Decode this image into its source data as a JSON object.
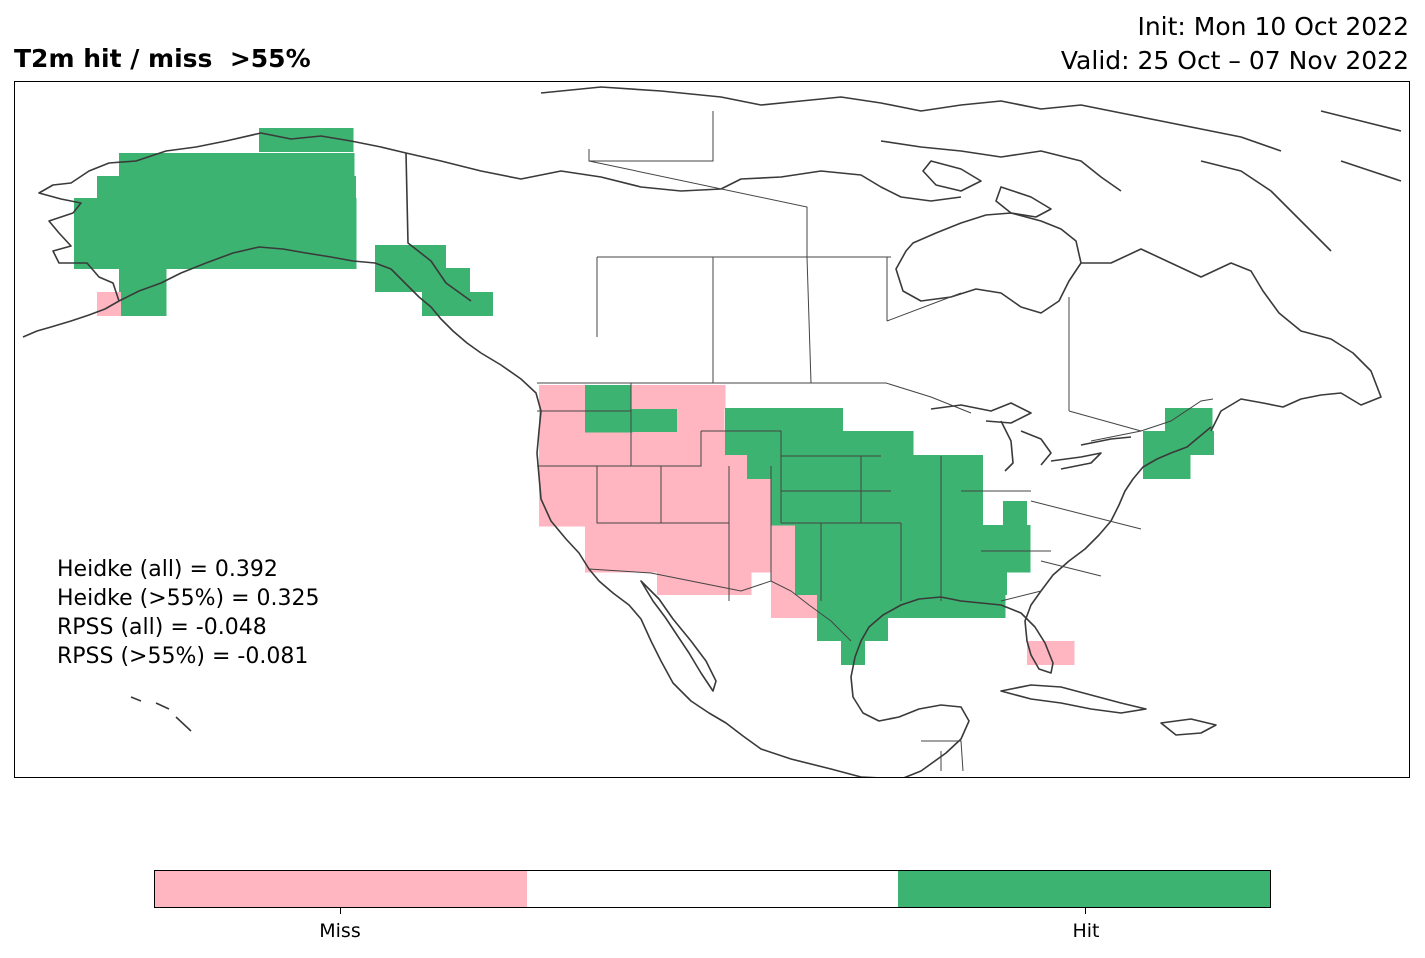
{
  "title": "T2m hit / miss  >55%",
  "init_line": "Init: Mon 10 Oct 2022",
  "valid_line": "Valid: 25 Oct – 07 Nov 2022",
  "stats": [
    "Heidke (all) = 0.392",
    "Heidke (>55%) = 0.325",
    "RPSS (all) = -0.048",
    "RPSS (>55%) = -0.081"
  ],
  "colors": {
    "miss": "#ffb6c1",
    "neutral": "#ffffff",
    "hit": "#3cb371",
    "coast": "#3a3a3a"
  },
  "colorbar": {
    "segments": [
      "miss",
      "neutral",
      "hit"
    ],
    "labels": {
      "miss": "Miss",
      "hit": "Hit"
    }
  },
  "map_data": {
    "cell_values": [
      "miss",
      "hit"
    ],
    "regions": [
      {
        "name": "Alaska interior",
        "value": "hit"
      },
      {
        "name": "Alaska southwest tip",
        "value": "miss"
      },
      {
        "name": "Alaska panhandle",
        "value": "hit"
      },
      {
        "name": "Pacific Northwest",
        "value": "miss"
      },
      {
        "name": "Northern Idaho / western Montana",
        "value": "hit"
      },
      {
        "name": "Montana / Wyoming",
        "value": "miss"
      },
      {
        "name": "Great Basin and Southwest",
        "value": "miss"
      },
      {
        "name": "Northern Plains (Dakotas, Minnesota)",
        "value": "hit"
      },
      {
        "name": "Central Plains, Midwest and Mississippi Valley",
        "value": "hit"
      },
      {
        "name": "Texas and Gulf Coast",
        "value": "hit"
      },
      {
        "name": "West Texas",
        "value": "miss"
      },
      {
        "name": "New England",
        "value": "hit"
      },
      {
        "name": "South Florida",
        "value": "miss"
      }
    ]
  }
}
